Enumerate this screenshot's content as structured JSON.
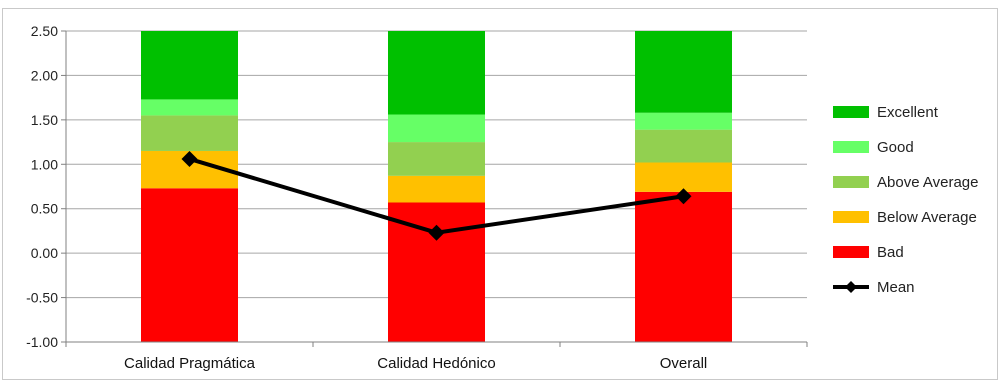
{
  "chart_data": {
    "type": "bar",
    "stacked": true,
    "categories": [
      "Calidad Pragmática",
      "Calidad Hedónico",
      "Overall"
    ],
    "ylim": [
      -1.0,
      2.5
    ],
    "yticks": [
      "2.50",
      "2.00",
      "1.50",
      "1.00",
      "0.50",
      "0.00",
      "-0.50",
      "-1.00"
    ],
    "ytick_values": [
      2.5,
      2.0,
      1.5,
      1.0,
      0.5,
      0.0,
      -0.5,
      -1.0
    ],
    "grid": true,
    "legend_position": "right",
    "series": [
      {
        "name": "Bad",
        "color": "#ff0000",
        "values": [
          1.73,
          1.57,
          1.69
        ]
      },
      {
        "name": "Below Average",
        "color": "#ffc000",
        "values": [
          0.42,
          0.3,
          0.33
        ]
      },
      {
        "name": "Above Average",
        "color": "#92d050",
        "values": [
          0.4,
          0.38,
          0.37
        ]
      },
      {
        "name": "Good",
        "color": "#66ff66",
        "values": [
          0.18,
          0.31,
          0.19
        ]
      },
      {
        "name": "Excellent",
        "color": "#00c000",
        "values": [
          0.77,
          0.94,
          0.92
        ]
      }
    ],
    "mean": {
      "name": "Mean",
      "color": "#000000",
      "values": [
        1.06,
        0.23,
        0.64
      ]
    }
  }
}
